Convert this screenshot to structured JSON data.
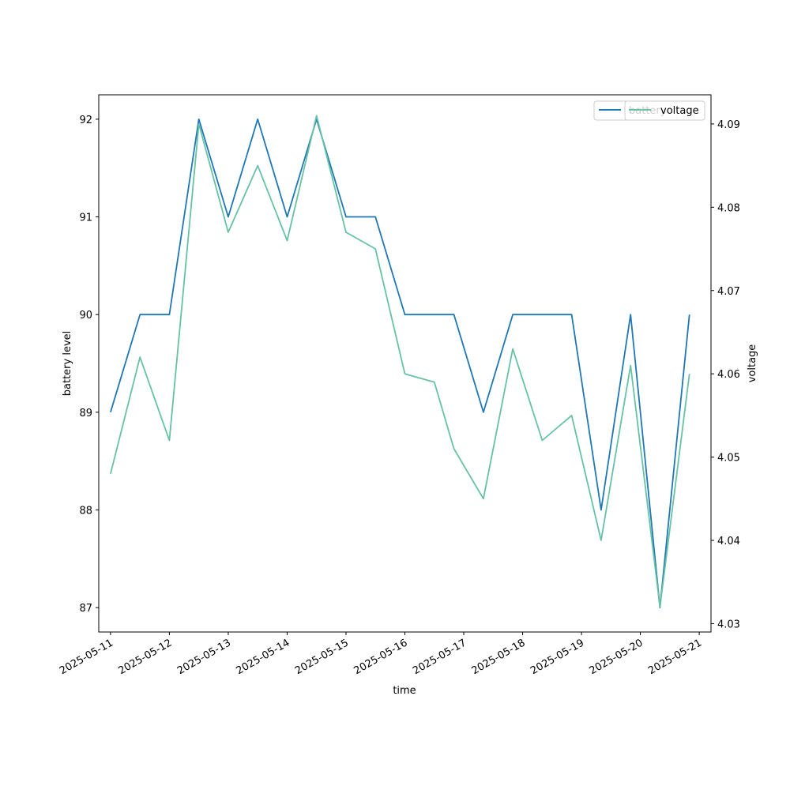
{
  "chart_data": {
    "type": "line",
    "xlabel": "time",
    "ylabel": "battery level",
    "y2label": "voltage",
    "x": [
      "2025-05-11 00:00",
      "2025-05-11 12:00",
      "2025-05-12 00:00",
      "2025-05-12 12:00",
      "2025-05-13 00:00",
      "2025-05-13 12:00",
      "2025-05-14 00:00",
      "2025-05-14 12:00",
      "2025-05-15 00:00",
      "2025-05-15 12:00",
      "2025-05-16 00:00",
      "2025-05-16 12:00",
      "2025-05-16 20:00",
      "2025-05-17 08:00",
      "2025-05-17 20:00",
      "2025-05-18 08:00",
      "2025-05-18 20:00",
      "2025-05-19 08:00",
      "2025-05-19 20:00",
      "2025-05-20 08:00",
      "2025-05-20 20:00"
    ],
    "x_ticks": [
      "2025-05-11",
      "2025-05-12",
      "2025-05-13",
      "2025-05-14",
      "2025-05-15",
      "2025-05-16",
      "2025-05-17",
      "2025-05-18",
      "2025-05-19",
      "2025-05-20",
      "2025-05-21"
    ],
    "xlim": [
      "2025-05-10 19:12",
      "2025-05-21 04:48"
    ],
    "ylim": [
      86.75,
      92.25
    ],
    "y_ticks": [
      87,
      88,
      89,
      90,
      91,
      92
    ],
    "y2lim": [
      4.029,
      4.0935
    ],
    "y2_ticks": [
      "4.03",
      "4.04",
      "4.05",
      "4.06",
      "4.07",
      "4.08",
      "4.09"
    ],
    "series": [
      {
        "name": "battery",
        "axis": "left",
        "color": "#1f77b4",
        "values": [
          89,
          90,
          90,
          92,
          91,
          92,
          91,
          92,
          91,
          91,
          90,
          90,
          90,
          89,
          90,
          90,
          90,
          88,
          90,
          87,
          90
        ]
      },
      {
        "name": "voltage",
        "axis": "right",
        "color": "#66c2a5",
        "values": [
          4.048,
          4.062,
          4.052,
          4.09,
          4.077,
          4.085,
          4.076,
          4.091,
          4.077,
          4.075,
          4.06,
          4.059,
          4.051,
          4.045,
          4.063,
          4.052,
          4.055,
          4.04,
          4.061,
          4.032,
          4.06
        ]
      }
    ],
    "legend_placement": "top-right",
    "grid": false
  }
}
